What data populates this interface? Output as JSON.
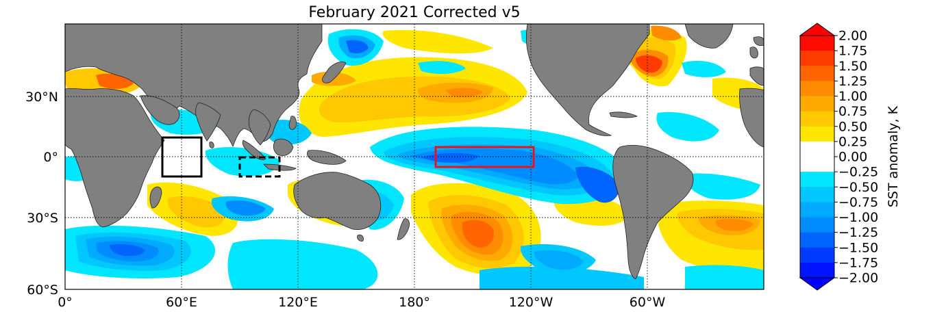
{
  "title": "February 2021 Corrected v5",
  "map": {
    "projection": "equirectangular",
    "lon_range": [
      0,
      360
    ],
    "lat_range": [
      -60,
      70
    ],
    "x_ticks": [
      {
        "lon": 0,
        "label": "0°"
      },
      {
        "lon": 60,
        "label": "60°E"
      },
      {
        "lon": 120,
        "label": "120°E"
      },
      {
        "lon": 180,
        "label": "180°"
      },
      {
        "lon": 240,
        "label": "120°W"
      },
      {
        "lon": 300,
        "label": "60°W"
      }
    ],
    "y_ticks": [
      {
        "lat": 30,
        "label": "30°N"
      },
      {
        "lat": 0,
        "label": "0°"
      },
      {
        "lat": -30,
        "label": "30°S"
      },
      {
        "lat": -60,
        "label": "60°S"
      }
    ],
    "gridlines": "dotted",
    "land_color": "#808080",
    "boxes": [
      {
        "name": "western-indian-ocean-box",
        "lon": [
          50,
          70
        ],
        "lat": [
          -10,
          10
        ],
        "color": "#000000",
        "style": "solid"
      },
      {
        "name": "eastern-indian-ocean-box",
        "lon": [
          90,
          110
        ],
        "lat": [
          -10,
          0
        ],
        "color": "#000000",
        "style": "dashed"
      },
      {
        "name": "nino34-box",
        "lon": [
          190,
          240
        ],
        "lat": [
          -5,
          5
        ],
        "color": "#e8141c",
        "style": "solid"
      }
    ],
    "anomaly_regions": [
      {
        "lon": 200,
        "lat": -38,
        "rx": 32,
        "ry": 22,
        "value": 1.25
      },
      {
        "lon": 198,
        "lat": 28,
        "rx": 55,
        "ry": 16,
        "value": 0.75
      },
      {
        "lon": 145,
        "lat": 28,
        "rx": 30,
        "ry": 16,
        "value": 0.75
      },
      {
        "lon": 305,
        "lat": 48,
        "rx": 14,
        "ry": 12,
        "value": 1.75
      },
      {
        "lon": 340,
        "lat": -35,
        "rx": 22,
        "ry": 10,
        "value": 0.75
      },
      {
        "lon": 210,
        "lat": -2,
        "rx": 60,
        "ry": 12,
        "value": -1.0
      },
      {
        "lon": 268,
        "lat": -15,
        "rx": 22,
        "ry": 22,
        "value": -1.25
      },
      {
        "lon": 25,
        "lat": -46,
        "rx": 25,
        "ry": 10,
        "value": -1.0
      },
      {
        "lon": 85,
        "lat": -27,
        "rx": 15,
        "ry": 8,
        "value": -0.75
      },
      {
        "lon": 150,
        "lat": 50,
        "rx": 12,
        "ry": 12,
        "value": -1.0
      },
      {
        "lon": 250,
        "lat": -52,
        "rx": 20,
        "ry": 8,
        "value": -0.75
      }
    ]
  },
  "colorbar": {
    "label": "SST anomaly, K",
    "levels": [
      "2.00",
      "1.75",
      "1.50",
      "1.25",
      "1.00",
      "0.75",
      "0.50",
      "0.25",
      "0.00",
      "−0.25",
      "−0.50",
      "−0.75",
      "−1.00",
      "−1.25",
      "−1.50",
      "−1.75",
      "−2.00"
    ],
    "colors_top_to_bottom": [
      "#ff0a00",
      "#ff3c00",
      "#ff6400",
      "#ff8c00",
      "#ffaa00",
      "#ffc800",
      "#ffe600",
      "#ffffff",
      "#ffffff",
      "#00e6ff",
      "#00c8ff",
      "#00aaff",
      "#008cff",
      "#0064ff",
      "#003cff",
      "#0014ff"
    ],
    "max_extension_color": "#ff0000",
    "min_extension_color": "#0000ff"
  }
}
